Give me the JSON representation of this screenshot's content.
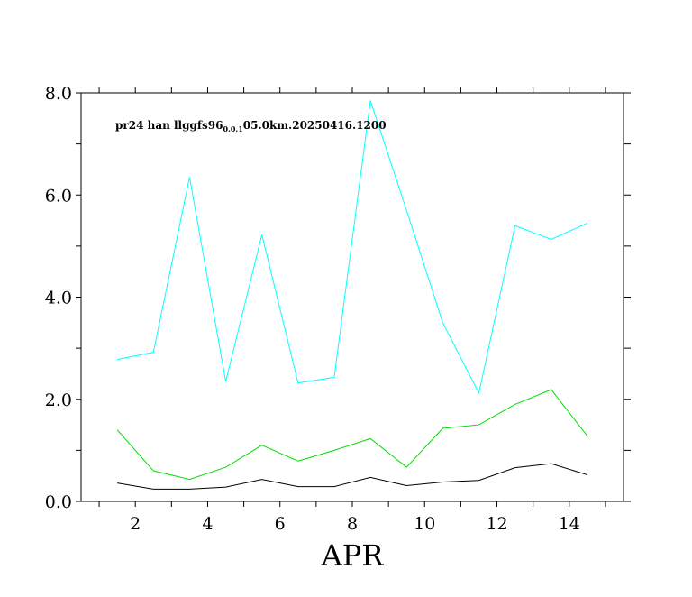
{
  "chart_data": {
    "type": "line",
    "title": "",
    "annotation": {
      "prefix": "pr24 han llggfs96",
      "subscript": "0.0.1",
      "suffix": "05.0km.20250416.1200"
    },
    "xlabel": "APR",
    "ylabel": "",
    "xlim": [
      0.5,
      15.5
    ],
    "ylim": [
      0,
      8
    ],
    "x": [
      1.5,
      2.5,
      3.5,
      4.5,
      5.5,
      6.5,
      7.5,
      8.5,
      9.5,
      10.5,
      11.5,
      12.5,
      13.5,
      14.5
    ],
    "x_ticks": [
      2,
      4,
      6,
      8,
      10,
      12,
      14
    ],
    "x_tick_labels": [
      "2",
      "4",
      "6",
      "8",
      "10",
      "12",
      "14"
    ],
    "y_ticks": [
      0,
      2,
      4,
      6,
      8
    ],
    "y_tick_labels": [
      "0.0",
      "2.0",
      "4.0",
      "6.0",
      "8.0"
    ],
    "grid": false,
    "series": [
      {
        "color": "#00ffff",
        "values": [
          2.78,
          2.92,
          6.35,
          2.35,
          5.22,
          2.32,
          2.43,
          7.85,
          5.7,
          3.5,
          2.12,
          5.4,
          5.13,
          5.45
        ]
      },
      {
        "color": "#00dd00",
        "values": [
          1.4,
          0.6,
          0.43,
          0.67,
          1.1,
          0.79,
          1.0,
          1.23,
          0.67,
          1.43,
          1.5,
          1.9,
          2.19,
          1.28
        ]
      },
      {
        "color": "#000000",
        "values": [
          0.36,
          0.24,
          0.24,
          0.28,
          0.43,
          0.29,
          0.29,
          0.47,
          0.31,
          0.38,
          0.41,
          0.66,
          0.74,
          0.52
        ]
      }
    ]
  }
}
